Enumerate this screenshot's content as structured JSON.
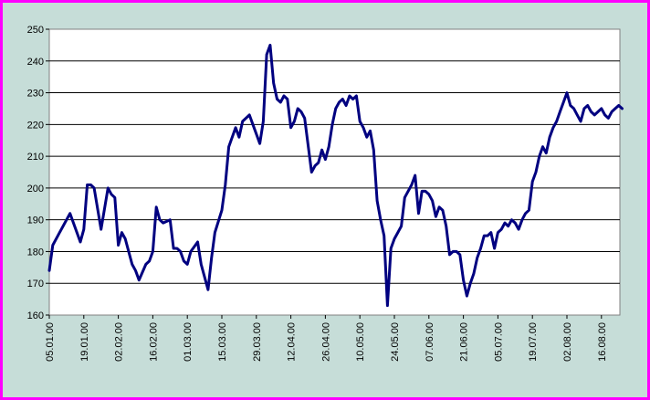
{
  "chart_data": {
    "type": "line",
    "title": "",
    "xlabel": "",
    "ylabel": "",
    "ylim": [
      160,
      250
    ],
    "yticks": [
      160,
      170,
      180,
      190,
      200,
      210,
      220,
      230,
      240,
      250
    ],
    "xtick_labels": [
      "05.01.00",
      "19.01.00",
      "02.02.00",
      "16.02.00",
      "01.03.00",
      "15.03.00",
      "29.03.00",
      "12.04.00",
      "26.04.00",
      "10.05.00",
      "24.05.00",
      "07.06.00",
      "21.06.00",
      "05.07.00",
      "19.07.00",
      "02.08.00",
      "16.08.00"
    ],
    "grid": "horizontal",
    "legend": "none",
    "colors": {
      "line": "#000080",
      "plot_bg": "#ffffff",
      "outer_bg": "#c6ddd8",
      "border": "#ff00ff"
    },
    "series": [
      {
        "x_index": [
          0,
          0.1,
          0.3,
          0.6,
          0.9,
          1.0,
          1.1,
          1.2,
          1.3,
          1.5,
          1.7,
          1.8,
          1.9,
          2.0,
          2.1,
          2.2,
          2.4,
          2.5,
          2.6,
          2.8,
          2.9,
          3.0,
          3.1,
          3.2,
          3.3,
          3.5,
          3.6,
          3.7,
          3.8,
          3.9,
          4.0,
          4.1,
          4.3,
          4.4,
          4.5,
          4.6,
          4.7,
          4.8,
          5.0,
          5.1,
          5.2,
          5.4,
          5.5,
          5.6,
          5.8,
          5.9,
          6.0,
          6.1,
          6.2,
          6.3,
          6.4,
          6.5,
          6.6,
          6.7,
          6.8,
          6.9,
          7.0,
          7.1,
          7.2,
          7.3,
          7.4,
          7.6,
          7.7,
          7.8,
          7.9,
          8.0,
          8.1,
          8.2,
          8.3,
          8.4,
          8.5,
          8.6,
          8.7,
          8.8,
          8.9,
          9.0,
          9.1,
          9.2,
          9.3,
          9.4,
          9.5,
          9.6,
          9.7,
          9.8,
          9.9,
          10.0,
          10.1,
          10.2,
          10.3,
          10.5,
          10.6,
          10.7,
          10.8,
          10.9,
          11.0,
          11.1,
          11.2,
          11.3,
          11.4,
          11.5,
          11.6,
          11.7,
          11.8,
          11.9,
          12.0,
          12.1,
          12.2,
          12.3,
          12.4,
          12.5,
          12.6,
          12.7,
          12.8,
          12.9,
          13.0,
          13.1,
          13.2,
          13.3,
          13.4,
          13.5,
          13.6,
          13.7,
          13.8,
          13.9,
          14.0,
          14.1,
          14.2,
          14.3,
          14.4,
          14.5,
          14.6,
          14.7,
          14.8,
          14.9,
          15.0,
          15.1,
          15.2,
          15.3,
          15.4,
          15.5,
          15.6,
          15.7,
          15.8,
          15.9,
          16.0,
          16.1,
          16.2,
          16.3,
          16.4,
          16.5,
          16.6
        ],
        "values": [
          174,
          182,
          186,
          192,
          183,
          187,
          201,
          201,
          200,
          187,
          200,
          198,
          197,
          182,
          186,
          184,
          176,
          174,
          171,
          176,
          177,
          180,
          194,
          190,
          189,
          190,
          181,
          181,
          180,
          177,
          176,
          180,
          183,
          176,
          172,
          168,
          178,
          186,
          193,
          201,
          213,
          219,
          216,
          221,
          223,
          220,
          217,
          214,
          221,
          242,
          245,
          233,
          228,
          227,
          229,
          228,
          219,
          221,
          225,
          224,
          222,
          205,
          207,
          208,
          212,
          209,
          213,
          220,
          225,
          227,
          228,
          226,
          229,
          228,
          229,
          221,
          219,
          216,
          218,
          212,
          196,
          190,
          185,
          163,
          181,
          184,
          186,
          188,
          197,
          201,
          204,
          192,
          199,
          199,
          198,
          196,
          191,
          194,
          193,
          188,
          179,
          180,
          180,
          179,
          171,
          166,
          170,
          173,
          178,
          181,
          185,
          185,
          186,
          181,
          186,
          187,
          189,
          188,
          190,
          189,
          187,
          190,
          192,
          193,
          202,
          205,
          210,
          213,
          211,
          216,
          219,
          221,
          224,
          227,
          230,
          226,
          225,
          223,
          221,
          225,
          226,
          224,
          223,
          224,
          225,
          223,
          222,
          224,
          225,
          226,
          225
        ]
      }
    ]
  }
}
